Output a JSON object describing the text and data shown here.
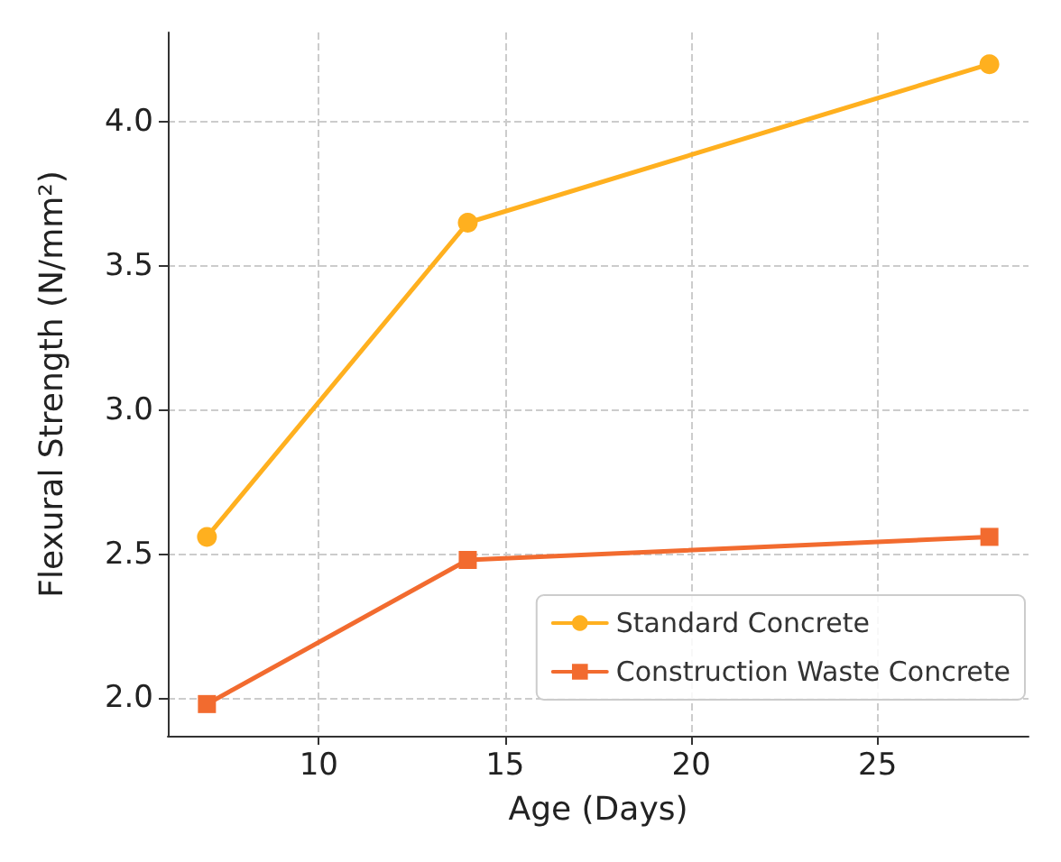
{
  "chart_data": {
    "type": "line",
    "xlabel": "Age (Days)",
    "ylabel": "Flexural Strength (N/mm²)",
    "x": [
      7,
      14,
      28
    ],
    "series": [
      {
        "name": "Standard Concrete",
        "color": "#ffb01f",
        "marker": "circle",
        "values": [
          2.56,
          3.65,
          4.2
        ]
      },
      {
        "name": "Construction Waste Concrete",
        "color": "#f26b2f",
        "marker": "square",
        "values": [
          1.98,
          2.48,
          2.56
        ]
      }
    ],
    "xlim": [
      5.95,
      29.05
    ],
    "xticks": [
      10,
      15,
      20,
      25
    ],
    "ylim": [
      1.87,
      4.31
    ],
    "yticks": [
      {
        "value": 2,
        "label": "2.0"
      },
      2.5,
      {
        "value": 3,
        "label": "3.0"
      },
      3.5,
      {
        "value": 4,
        "label": "4.0"
      }
    ],
    "grid": true,
    "legend": "bottom right",
    "line_style": "solid"
  }
}
